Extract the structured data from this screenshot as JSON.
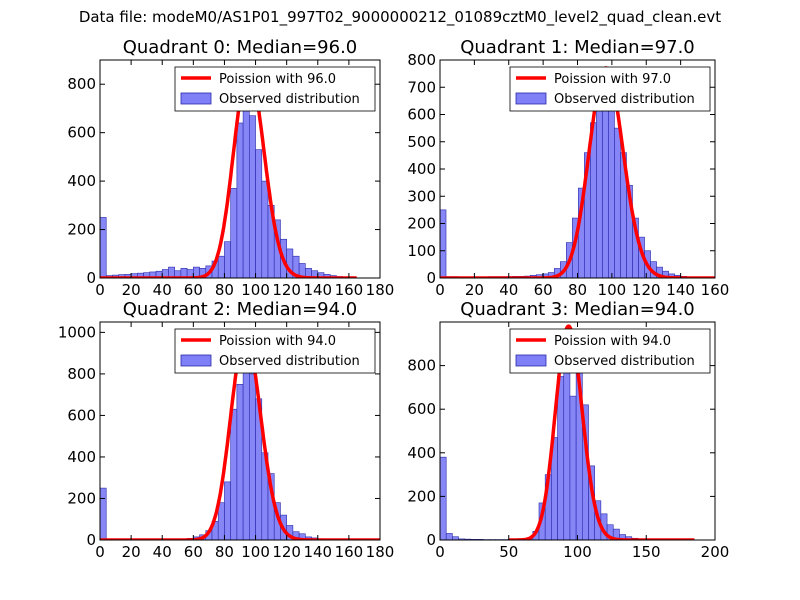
{
  "figure_title": "Data file: modeM0/AS1P01_997T02_9000000212_01089cztM0_level2_quad_clean.evt",
  "colors": {
    "fit": "#ff0000",
    "hist_fill": "#7f7ff7",
    "hist_edge": "#2a2aaa"
  },
  "chart_data": [
    {
      "type": "bar",
      "title": "Quadrant 0: Median=96.0",
      "xlim": [
        0,
        180
      ],
      "ylim": [
        0,
        900
      ],
      "xticks": [
        0,
        20,
        40,
        60,
        80,
        100,
        120,
        140,
        160,
        180
      ],
      "yticks": [
        0,
        200,
        400,
        600,
        800
      ],
      "legend": {
        "location": "top-right",
        "entries": [
          "Poission with 96.0",
          "Observed distribution"
        ]
      },
      "poisson": {
        "label": "Poission with 96.0",
        "mean": 96.0,
        "peak": 860,
        "range": [
          0,
          165
        ]
      },
      "histogram": {
        "label": "Observed distribution",
        "bin_width": 4,
        "bin_start": [
          0,
          4,
          8,
          12,
          16,
          20,
          24,
          28,
          32,
          36,
          40,
          44,
          48,
          52,
          56,
          60,
          64,
          68,
          72,
          76,
          80,
          84,
          88,
          92,
          96,
          100,
          104,
          108,
          112,
          116,
          120,
          124,
          128,
          132,
          136,
          140,
          144,
          148,
          152,
          156,
          160
        ],
        "counts": [
          250,
          10,
          12,
          14,
          15,
          18,
          20,
          22,
          25,
          28,
          35,
          45,
          30,
          40,
          35,
          45,
          40,
          50,
          70,
          90,
          150,
          370,
          640,
          720,
          670,
          530,
          400,
          300,
          240,
          160,
          120,
          90,
          60,
          40,
          30,
          22,
          15,
          10,
          6,
          4,
          2
        ]
      }
    },
    {
      "type": "bar",
      "title": "Quadrant 1: Median=97.0",
      "xlim": [
        0,
        160
      ],
      "ylim": [
        0,
        800
      ],
      "xticks": [
        0,
        20,
        40,
        60,
        80,
        100,
        120,
        140,
        160
      ],
      "yticks": [
        0,
        100,
        200,
        300,
        400,
        500,
        600,
        700,
        800
      ],
      "legend": {
        "location": "top-right",
        "entries": [
          "Poission with 97.0",
          "Observed distribution"
        ]
      },
      "poisson": {
        "label": "Poission with 97.0",
        "mean": 97.0,
        "peak": 770,
        "range": [
          0,
          160
        ]
      },
      "histogram": {
        "label": "Observed distribution",
        "bin_width": 3.5,
        "bin_start": [
          0,
          3.5,
          7,
          10.5,
          14,
          17.5,
          21,
          24.5,
          28,
          31.5,
          35,
          38.5,
          42,
          45.5,
          49,
          52.5,
          56,
          59.5,
          63,
          66.5,
          70,
          73.5,
          77,
          80.5,
          84,
          87.5,
          91,
          94.5,
          98,
          101.5,
          105,
          108.5,
          112,
          115.5,
          119,
          122.5,
          126,
          129.5,
          133,
          136.5,
          140,
          143.5,
          147,
          150.5,
          154
        ],
        "counts": [
          250,
          5,
          5,
          4,
          4,
          4,
          4,
          4,
          5,
          5,
          5,
          5,
          6,
          6,
          7,
          10,
          12,
          15,
          20,
          35,
          60,
          130,
          220,
          330,
          460,
          570,
          680,
          720,
          650,
          550,
          460,
          340,
          220,
          150,
          100,
          60,
          40,
          25,
          15,
          10,
          6,
          3,
          2,
          1,
          1
        ]
      }
    },
    {
      "type": "bar",
      "title": "Quadrant 2: Median=94.0",
      "xlim": [
        0,
        180
      ],
      "ylim": [
        0,
        1050
      ],
      "xticks": [
        0,
        20,
        40,
        60,
        80,
        100,
        120,
        140,
        160,
        180
      ],
      "yticks": [
        0,
        200,
        400,
        600,
        800,
        1000
      ],
      "legend": {
        "location": "top-right",
        "entries": [
          "Poission with 94.0",
          "Observed distribution"
        ]
      },
      "poisson": {
        "label": "Poission with 94.0",
        "mean": 94.0,
        "peak": 980,
        "range": [
          0,
          180
        ]
      },
      "histogram": {
        "label": "Observed distribution",
        "bin_width": 4,
        "bin_start": [
          0,
          4,
          8,
          12,
          16,
          20,
          24,
          28,
          32,
          36,
          40,
          44,
          48,
          52,
          56,
          60,
          64,
          68,
          72,
          76,
          80,
          84,
          88,
          92,
          96,
          100,
          104,
          108,
          112,
          116,
          120,
          124,
          128,
          132,
          136,
          140,
          144,
          148,
          152,
          156,
          160,
          164,
          168,
          172,
          176
        ],
        "counts": [
          250,
          5,
          3,
          3,
          3,
          3,
          3,
          3,
          3,
          3,
          3,
          3,
          4,
          5,
          8,
          15,
          25,
          45,
          90,
          180,
          280,
          630,
          750,
          920,
          800,
          680,
          420,
          320,
          180,
          120,
          70,
          40,
          30,
          15,
          10,
          6,
          4,
          3,
          2,
          2,
          1,
          1,
          1,
          0,
          0
        ]
      }
    },
    {
      "type": "bar",
      "title": "Quadrant 3: Median=94.0",
      "xlim": [
        0,
        200
      ],
      "ylim": [
        0,
        1000
      ],
      "xticks": [
        0,
        50,
        100,
        150,
        200
      ],
      "yticks": [
        0,
        200,
        400,
        600,
        800
      ],
      "legend": {
        "location": "top-right",
        "entries": [
          "Poission with 94.0",
          "Observed distribution"
        ]
      },
      "poisson": {
        "label": "Poission with 94.0",
        "mean": 94.0,
        "peak": 980,
        "range": [
          50,
          185
        ]
      },
      "histogram": {
        "label": "Observed distribution",
        "bin_width": 4.5,
        "bin_start": [
          0,
          4.5,
          9,
          13.5,
          18,
          22.5,
          27,
          31.5,
          36,
          40.5,
          45,
          49.5,
          54,
          58.5,
          63,
          67.5,
          72,
          76.5,
          81,
          85.5,
          90,
          94.5,
          99,
          103.5,
          108,
          112.5,
          117,
          121.5,
          126,
          130.5,
          135,
          139.5,
          144,
          148.5,
          153,
          157.5,
          162,
          166.5,
          171,
          175.5,
          180
        ],
        "counts": [
          380,
          30,
          15,
          5,
          4,
          3,
          3,
          2,
          2,
          2,
          2,
          3,
          4,
          6,
          10,
          40,
          170,
          300,
          470,
          750,
          930,
          660,
          880,
          620,
          340,
          180,
          120,
          70,
          50,
          25,
          15,
          8,
          5,
          3,
          2,
          1,
          1,
          1,
          0,
          0,
          0
        ]
      }
    }
  ]
}
